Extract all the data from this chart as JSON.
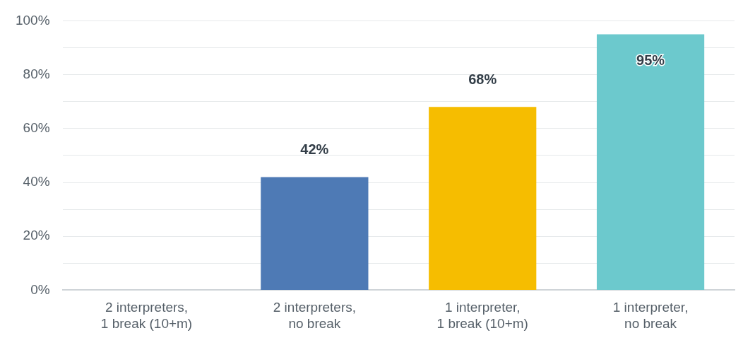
{
  "chart_data": {
    "type": "bar",
    "categories": [
      "2 interpreters,\n1 break (10+m)",
      "2 interpreters,\nno break",
      "1 interpreter,\n1 break (10+m)",
      "1 interpreter,\nno break"
    ],
    "values": [
      0,
      42,
      68,
      95
    ],
    "colors": [
      "#4e7ab5",
      "#4e7ab5",
      "#f6bd00",
      "#6cc9cd"
    ],
    "value_labels": [
      null,
      "42%",
      "68%",
      "95%"
    ],
    "ylim": [
      0,
      100
    ],
    "yticks": [
      {
        "value": 0,
        "label": "0%"
      },
      {
        "value": 10,
        "label": null
      },
      {
        "value": 20,
        "label": "20%"
      },
      {
        "value": 30,
        "label": null
      },
      {
        "value": 40,
        "label": "40%"
      },
      {
        "value": 50,
        "label": null
      },
      {
        "value": 60,
        "label": "60%"
      },
      {
        "value": 70,
        "label": null
      },
      {
        "value": 80,
        "label": "80%"
      },
      {
        "value": 90,
        "label": null
      },
      {
        "value": 100,
        "label": "100%"
      }
    ],
    "grid": "y",
    "legend": false
  }
}
